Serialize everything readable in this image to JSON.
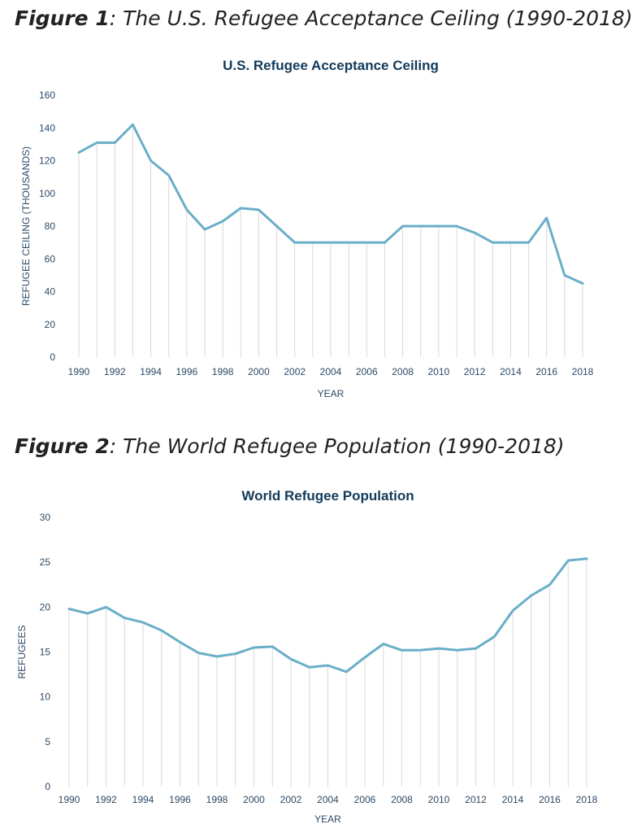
{
  "figures": [
    {
      "number": "Figure 1",
      "sep": ":",
      "caption": "The U.S. Refugee Acceptance Ceiling (1990-2018)"
    },
    {
      "number": "Figure 2",
      "sep": ":",
      "caption": "The World Refugee Population (1990-2018)"
    }
  ],
  "colors": {
    "line": "#6aaec8",
    "title": "#123a5a",
    "text": "#2c4a66",
    "droplines": "#d9d9d9"
  },
  "chart_data": [
    {
      "type": "line",
      "title": "U.S. Refugee Acceptance Ceiling",
      "xlabel": "YEAR",
      "ylabel": "REFUGEE CEILING (THOUSANDS)",
      "ylim": [
        0,
        160
      ],
      "yticks": [
        0,
        20,
        40,
        60,
        80,
        100,
        120,
        140,
        160
      ],
      "xticks": [
        1990,
        1992,
        1994,
        1996,
        1998,
        2000,
        2002,
        2004,
        2006,
        2008,
        2010,
        2012,
        2014,
        2016,
        2018
      ],
      "grid": "vertical drop lines",
      "x": [
        1990,
        1991,
        1992,
        1993,
        1994,
        1995,
        1996,
        1997,
        1998,
        1999,
        2000,
        2001,
        2002,
        2003,
        2004,
        2005,
        2006,
        2007,
        2008,
        2009,
        2010,
        2011,
        2012,
        2013,
        2014,
        2015,
        2016,
        2017,
        2018
      ],
      "values": [
        125,
        131,
        131,
        142,
        120,
        111,
        90,
        78,
        83,
        91,
        90,
        80,
        70,
        70,
        70,
        70,
        70,
        70,
        80,
        80,
        80,
        80,
        76,
        70,
        70,
        70,
        85,
        50,
        45
      ]
    },
    {
      "type": "line",
      "title": "World Refugee Population",
      "xlabel": "YEAR",
      "ylabel": "REFUGEES",
      "ylim": [
        0,
        30
      ],
      "yticks": [
        0,
        5,
        10,
        15,
        20,
        25,
        30
      ],
      "xticks": [
        1990,
        1992,
        1994,
        1996,
        1998,
        2000,
        2002,
        2004,
        2006,
        2008,
        2010,
        2012,
        2014,
        2016,
        2018
      ],
      "grid": "vertical drop lines",
      "x": [
        1990,
        1991,
        1992,
        1993,
        1994,
        1995,
        1996,
        1997,
        1998,
        1999,
        2000,
        2001,
        2002,
        2003,
        2004,
        2005,
        2006,
        2007,
        2008,
        2009,
        2010,
        2011,
        2012,
        2013,
        2014,
        2015,
        2016,
        2017,
        2018
      ],
      "values": [
        19.8,
        19.3,
        20.0,
        18.8,
        18.3,
        17.4,
        16.1,
        14.9,
        14.5,
        14.8,
        15.5,
        15.6,
        14.2,
        13.3,
        13.5,
        12.8,
        14.4,
        15.9,
        15.2,
        15.2,
        15.4,
        15.2,
        15.4,
        16.7,
        19.6,
        21.3,
        22.5,
        25.2,
        25.4
      ]
    }
  ]
}
